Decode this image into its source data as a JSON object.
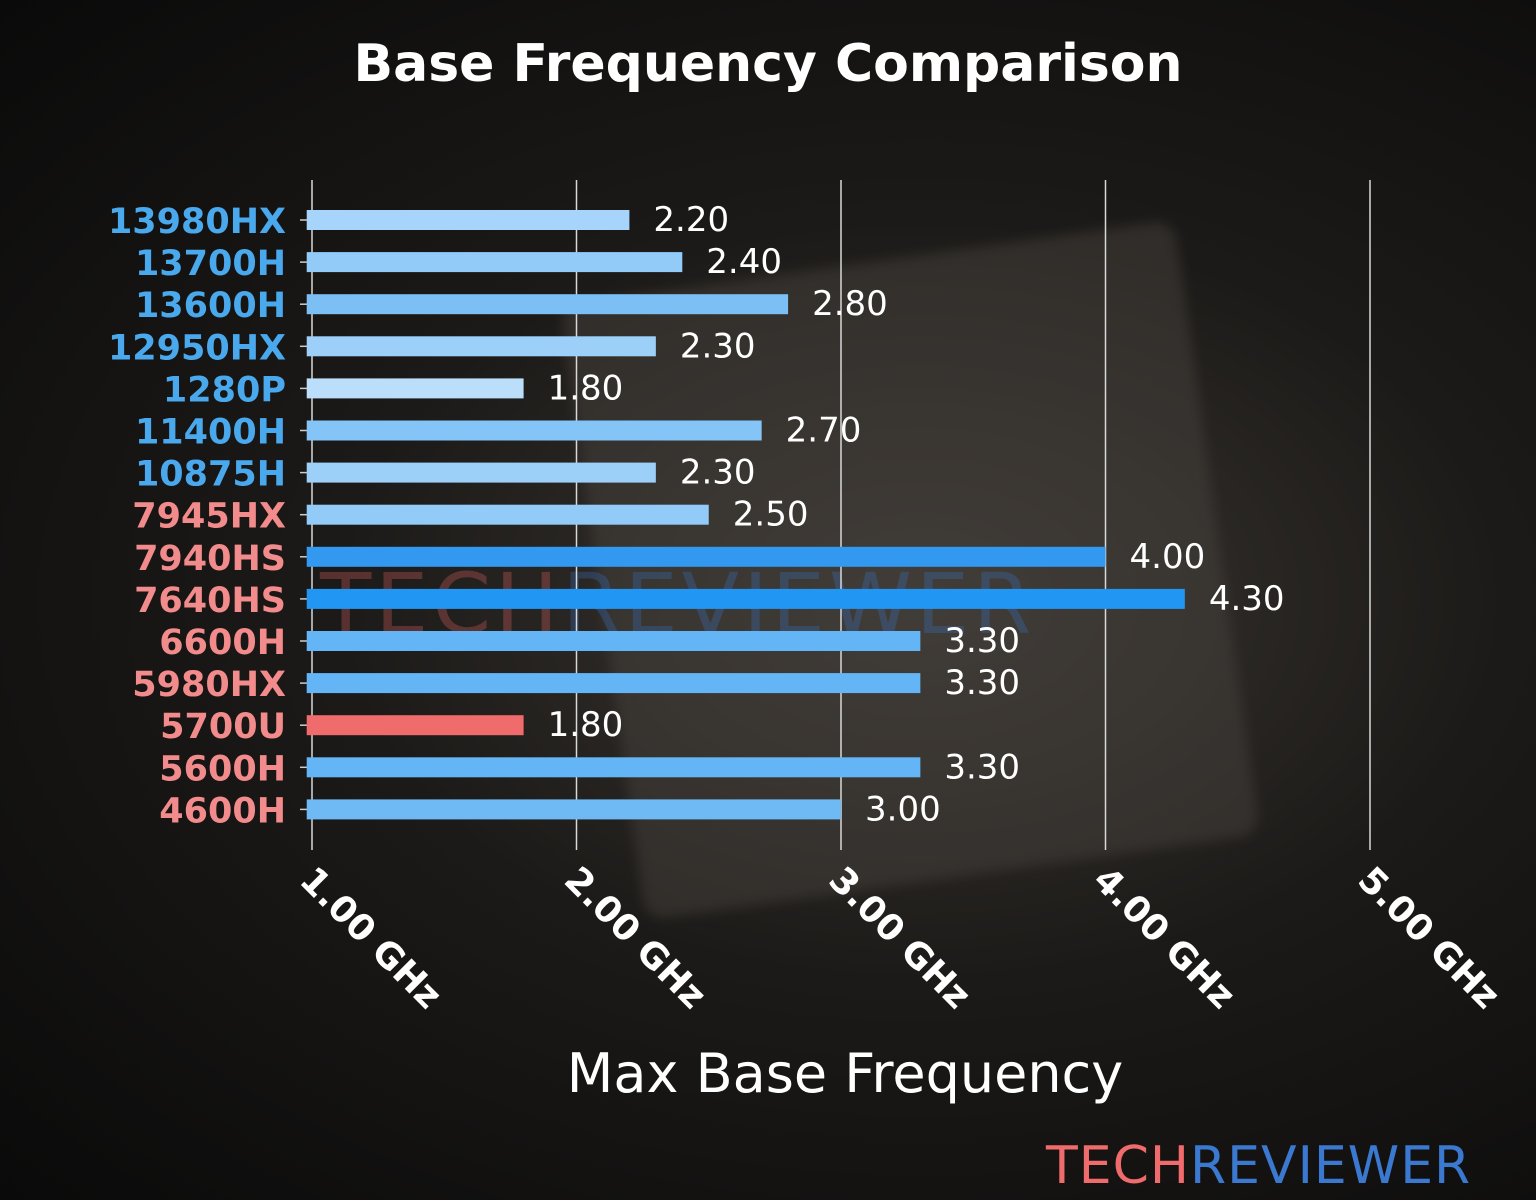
{
  "chart_data": {
    "type": "bar",
    "orientation": "horizontal",
    "title": "Base Frequency Comparison",
    "xlabel": "Max Base Frequency",
    "ylabel": "",
    "xlim": [
      0.98,
      5.0
    ],
    "xticks": [
      1,
      2,
      3,
      4,
      5
    ],
    "xtick_labels": [
      "1.00 GHz",
      "2.00 GHz",
      "3.00 GHz",
      "4.00 GHz",
      "5.00 GHz"
    ],
    "grid": "vertical",
    "categories": [
      "13980HX",
      "13700H",
      "13600H",
      "12950HX",
      "1280P",
      "11400H",
      "10875H",
      "7945HX",
      "7940HS",
      "7640HS",
      "6600H",
      "5980HX",
      "5700U",
      "5600H",
      "4600H"
    ],
    "values": [
      2.2,
      2.4,
      2.8,
      2.3,
      1.8,
      2.7,
      2.3,
      2.5,
      4.0,
      4.3,
      3.3,
      3.3,
      1.8,
      3.3,
      3.0
    ],
    "value_labels": [
      "2.20",
      "2.40",
      "2.80",
      "2.30",
      "1.80",
      "2.70",
      "2.30",
      "2.50",
      "4.00",
      "4.30",
      "3.30",
      "3.30",
      "1.80",
      "3.30",
      "3.00"
    ],
    "bar_colors": [
      "#a6d4fa",
      "#93cbf8",
      "#7bbff5",
      "#9dd0f9",
      "#bbdefb",
      "#84c4f6",
      "#9dd0f9",
      "#92cbf8",
      "#3399f0",
      "#2196f3",
      "#64b5f6",
      "#64b5f6",
      "#f06b6b",
      "#64b5f6",
      "#6fbaf5"
    ],
    "label_colors": [
      "#4aa8ec",
      "#4aa8ec",
      "#4aa8ec",
      "#4aa8ec",
      "#4aa8ec",
      "#4aa8ec",
      "#4aa8ec",
      "#f28b8b",
      "#f28b8b",
      "#f28b8b",
      "#f28b8b",
      "#f28b8b",
      "#f28b8b",
      "#f28b8b",
      "#f28b8b"
    ]
  },
  "logo": {
    "part1": "TECH",
    "part2": "REVIEWER",
    "color1": "#f06b6b",
    "color2": "#3b78d0"
  }
}
